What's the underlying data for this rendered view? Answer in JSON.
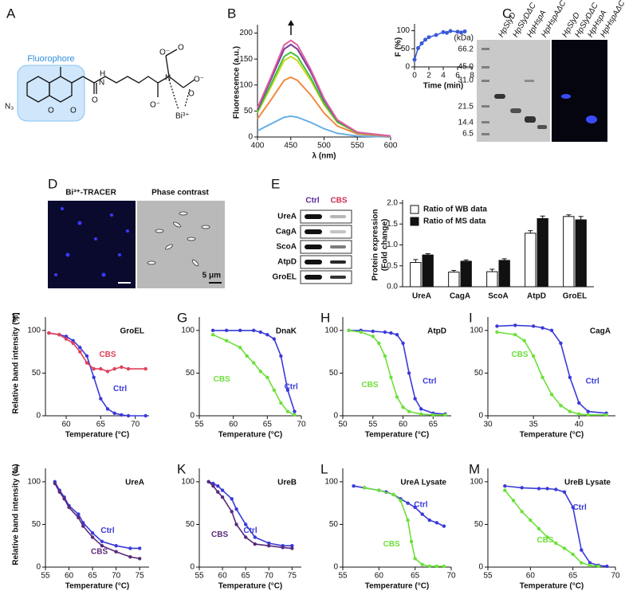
{
  "figure": {
    "A": {
      "letter": "A",
      "fluorophore": "Fluorophore",
      "labels": [
        "N₃",
        "O",
        "O",
        "H",
        "N",
        "O",
        "O⁻",
        "N",
        "O",
        "O⁻",
        "O⁻",
        "O",
        "Bi³⁺"
      ]
    },
    "C": {
      "letter": "C",
      "unit": "(kDa)",
      "markers": [
        "66.2",
        "45.0",
        "31.0",
        "21.5",
        "14.4",
        "6.5"
      ],
      "lanes": [
        "HpSlyD",
        "HpSlyDΔC",
        "HpHspA",
        "HpHspAΔC"
      ]
    },
    "D": {
      "letter": "D",
      "left": "Bi³⁺-TRACER",
      "right": "Phase contrast",
      "scale": "5 μm"
    },
    "E": {
      "letter": "E",
      "columns": [
        "Ctrl",
        "CBS"
      ],
      "rows": [
        "UreA",
        "CagA",
        "ScoA",
        "AtpD",
        "GroEL"
      ]
    }
  },
  "chart_data": [
    {
      "type": "line",
      "panel": "B",
      "xlabel": "λ (nm)",
      "ylabel": "Fluorescence (a.u.)",
      "x": [
        400,
        420,
        440,
        450,
        460,
        480,
        500,
        520,
        550,
        600
      ],
      "xlim": [
        400,
        600
      ],
      "xticks": [
        400,
        450,
        500,
        550,
        600
      ],
      "ylim": [
        0,
        210
      ],
      "yticks": [
        0,
        50,
        100,
        150,
        200
      ],
      "series": [
        {
          "color": "#6ab0e8",
          "values": [
            12,
            25,
            38,
            40,
            38,
            28,
            16,
            7,
            2,
            0
          ]
        },
        {
          "color": "#f08a40",
          "values": [
            35,
            71,
            109,
            115,
            109,
            81,
            46,
            21,
            6,
            1
          ]
        },
        {
          "color": "#c8d820",
          "values": [
            47,
            96,
            147,
            155,
            147,
            109,
            62,
            28,
            8,
            2
          ]
        },
        {
          "color": "#40c040",
          "values": [
            49,
            101,
            155,
            163,
            155,
            114,
            65,
            29,
            8,
            2
          ]
        },
        {
          "color": "#7a3aa0",
          "values": [
            53,
            110,
            169,
            178,
            169,
            125,
            71,
            32,
            9,
            2
          ]
        },
        {
          "color": "#e060a0",
          "values": [
            56,
            115,
            177,
            186,
            177,
            130,
            74,
            33,
            9,
            2
          ]
        }
      ]
    },
    {
      "type": "line",
      "markers": true,
      "xlabel": "Time (min)",
      "ylabel": "F (%)",
      "x": [
        0,
        0.5,
        1,
        1.5,
        2,
        3,
        4,
        4.5,
        5,
        6,
        6.5,
        7
      ],
      "xlim": [
        0,
        8
      ],
      "xticks": [
        0,
        2,
        4,
        6,
        8
      ],
      "ylim": [
        0,
        110
      ],
      "yticks": [
        0,
        50,
        100
      ],
      "series": [
        {
          "color": "#3a5ad8",
          "values": [
            20,
            52,
            65,
            75,
            82,
            88,
            96,
            94,
            99,
            97,
            95,
            98
          ]
        }
      ]
    },
    {
      "type": "bar",
      "ylabel": [
        "Protein expression",
        "(Fold change)"
      ],
      "legend": "upper left",
      "categories": [
        "UreA",
        "CagA",
        "ScoA",
        "AtpD",
        "GroEL"
      ],
      "ylim": [
        0,
        2
      ],
      "yticks": [
        {
          "value": 0,
          "label": "0.0"
        },
        0.5,
        {
          "value": 1,
          "label": "1.0"
        },
        1.5,
        {
          "value": 2,
          "label": "2.0"
        }
      ],
      "series": [
        {
          "name": "Ratio of WB data",
          "color": "#ffffff",
          "values": [
            0.58,
            0.35,
            0.36,
            1.28,
            1.68
          ],
          "errors": [
            0.07,
            0.04,
            0.06,
            0.06,
            0.04
          ]
        },
        {
          "name": "Ratio of MS data",
          "color": "#111111",
          "values": [
            0.76,
            0.61,
            0.63,
            1.63,
            1.6
          ],
          "errors": [
            0.03,
            0.03,
            0.04,
            0.06,
            0.08
          ]
        }
      ]
    },
    {
      "type": "line",
      "markers": true,
      "panel": "F",
      "title": "GroEL",
      "xlabel": "Temperature (°C)",
      "ylabel": "Relative band intensity (%)",
      "xlim": [
        57,
        72
      ],
      "xticks": [
        60,
        65,
        70
      ],
      "ylim": [
        0,
        112
      ],
      "yticks": [
        0,
        50,
        100
      ],
      "series": [
        {
          "name": "Ctrl",
          "color": "#3a3ad8",
          "x": [
            57.5,
            59,
            60,
            61,
            62,
            63,
            64,
            65,
            66,
            67,
            68,
            69,
            71.5
          ],
          "values": [
            97,
            95,
            93,
            88,
            80,
            70,
            45,
            20,
            8,
            3,
            1,
            0,
            0
          ]
        },
        {
          "name": "CBS",
          "color": "#e0405a",
          "x": [
            57.5,
            59,
            60,
            61,
            62,
            63,
            64,
            65,
            66,
            67,
            68,
            69,
            71.5
          ],
          "values": [
            97,
            95,
            90,
            85,
            75,
            62,
            55,
            55,
            52,
            55,
            57,
            55,
            55
          ]
        }
      ]
    },
    {
      "type": "line",
      "markers": true,
      "panel": "G",
      "title": "DnaK",
      "xlabel": "Temperature (°C)",
      "xlim": [
        55,
        70
      ],
      "xticks": [
        55,
        60,
        65,
        70
      ],
      "ylim": [
        0,
        112
      ],
      "yticks": [
        0,
        50,
        100
      ],
      "series": [
        {
          "name": "Ctrl",
          "color": "#3a3ad8",
          "x": [
            57,
            59,
            61,
            63,
            64,
            65,
            66,
            67,
            68,
            69
          ],
          "values": [
            100,
            100,
            100,
            100,
            98,
            95,
            90,
            70,
            30,
            5
          ]
        },
        {
          "name": "CBS",
          "color": "#6ce03a",
          "x": [
            57,
            59,
            61,
            62,
            63,
            64,
            65,
            66,
            67,
            68,
            69
          ],
          "values": [
            95,
            88,
            80,
            70,
            62,
            52,
            45,
            30,
            15,
            5,
            1
          ]
        }
      ]
    },
    {
      "type": "line",
      "markers": true,
      "panel": "H",
      "title": "AtpD",
      "xlabel": "Temperature (°C)",
      "xlim": [
        50,
        68
      ],
      "xticks": [
        50,
        55,
        60,
        65
      ],
      "ylim": [
        0,
        112
      ],
      "yticks": [
        0,
        50,
        100
      ],
      "series": [
        {
          "name": "Ctrl",
          "color": "#3a3ad8",
          "x": [
            51,
            53,
            55,
            57,
            58,
            59,
            60,
            61,
            62,
            63,
            65,
            67
          ],
          "values": [
            100,
            100,
            99,
            98,
            97,
            95,
            85,
            50,
            20,
            8,
            3,
            2
          ]
        },
        {
          "name": "CBS",
          "color": "#6ce03a",
          "x": [
            51,
            53,
            55,
            56,
            57,
            58,
            59,
            60,
            61,
            63,
            65,
            67
          ],
          "values": [
            100,
            98,
            93,
            85,
            70,
            45,
            22,
            10,
            5,
            2,
            1,
            1
          ]
        }
      ]
    },
    {
      "type": "line",
      "markers": true,
      "panel": "I",
      "title": "CagA",
      "xlabel": "Temperature (°C)",
      "xlim": [
        30,
        44
      ],
      "xticks": [
        30,
        35,
        40
      ],
      "ylim": [
        0,
        112
      ],
      "yticks": [
        0,
        50,
        100
      ],
      "series": [
        {
          "name": "Ctrl",
          "color": "#3a3ad8",
          "x": [
            31,
            33,
            35,
            36,
            37,
            38,
            39,
            40,
            41,
            43
          ],
          "values": [
            105,
            106,
            105,
            103,
            100,
            85,
            45,
            15,
            5,
            3
          ]
        },
        {
          "name": "CBS",
          "color": "#6ce03a",
          "x": [
            31,
            33,
            34,
            35,
            36,
            37,
            38,
            39,
            40,
            41,
            43
          ],
          "values": [
            98,
            95,
            88,
            70,
            45,
            25,
            12,
            5,
            2,
            1,
            1
          ]
        }
      ]
    },
    {
      "type": "line",
      "markers": true,
      "panel": "J",
      "title": "UreA",
      "xlabel": "Temperature (°C)",
      "ylabel": "Relative band intensity (%)",
      "xlim": [
        55,
        77
      ],
      "xticks": [
        55,
        60,
        65,
        70,
        75
      ],
      "ylim": [
        0,
        112
      ],
      "yticks": [
        0,
        50,
        100
      ],
      "series": [
        {
          "name": "Ctrl",
          "color": "#3a3ad8",
          "x": [
            57,
            58,
            59,
            60,
            62,
            63,
            65,
            67,
            70,
            73,
            75
          ],
          "values": [
            100,
            90,
            82,
            72,
            62,
            52,
            40,
            30,
            25,
            22,
            22
          ]
        },
        {
          "name": "CBS",
          "color": "#5a2a7a",
          "x": [
            57,
            58,
            59,
            60,
            62,
            63,
            65,
            67,
            70,
            73,
            75
          ],
          "values": [
            98,
            88,
            80,
            70,
            58,
            48,
            35,
            25,
            18,
            12,
            10
          ]
        }
      ]
    },
    {
      "type": "line",
      "markers": true,
      "panel": "K",
      "title": "UreB",
      "xlabel": "Temperature (°C)",
      "xlim": [
        55,
        77
      ],
      "xticks": [
        55,
        60,
        65,
        70,
        75
      ],
      "ylim": [
        0,
        112
      ],
      "yticks": [
        0,
        50,
        100
      ],
      "series": [
        {
          "name": "Ctrl",
          "color": "#3a3ad8",
          "x": [
            57,
            58,
            59,
            60,
            62,
            63,
            65,
            67,
            70,
            73,
            75
          ],
          "values": [
            100,
            98,
            95,
            90,
            80,
            68,
            50,
            35,
            28,
            25,
            25
          ]
        },
        {
          "name": "CBS",
          "color": "#5a2a7a",
          "x": [
            57,
            58,
            59,
            60,
            62,
            63,
            65,
            67,
            70,
            73,
            75
          ],
          "values": [
            100,
            95,
            88,
            82,
            65,
            50,
            35,
            27,
            25,
            23,
            22
          ]
        }
      ]
    },
    {
      "type": "line",
      "markers": true,
      "panel": "L",
      "title": "UreA Lysate",
      "xlabel": "Temperature (°C)",
      "xlim": [
        55,
        70
      ],
      "xticks": [
        55,
        60,
        65,
        70
      ],
      "ylim": [
        0,
        112
      ],
      "yticks": [
        0,
        50,
        100
      ],
      "series": [
        {
          "name": "Ctrl",
          "color": "#3a3ad8",
          "x": [
            56.5,
            58,
            60,
            61,
            62,
            63,
            64,
            65,
            66,
            67,
            68,
            69
          ],
          "values": [
            95,
            93,
            90,
            88,
            85,
            80,
            75,
            70,
            62,
            55,
            52,
            48
          ]
        },
        {
          "name": "CBS",
          "color": "#6ce03a",
          "x": [
            58,
            60,
            62,
            63,
            64,
            64.5,
            65,
            66,
            67,
            68,
            69
          ],
          "values": [
            93,
            90,
            85,
            78,
            55,
            30,
            10,
            3,
            1,
            1,
            1
          ]
        }
      ]
    },
    {
      "type": "line",
      "markers": true,
      "panel": "M",
      "title": "UreB Lysate",
      "xlabel": "Temperature (°C)",
      "xlim": [
        55,
        70
      ],
      "xticks": [
        55,
        60,
        65,
        70
      ],
      "ylim": [
        0,
        112
      ],
      "yticks": [
        0,
        50,
        100
      ],
      "series": [
        {
          "name": "Ctrl",
          "color": "#3a3ad8",
          "x": [
            57,
            59,
            61,
            62,
            63,
            64,
            65,
            66,
            67,
            68,
            69
          ],
          "values": [
            95,
            93,
            92,
            92,
            91,
            88,
            70,
            20,
            5,
            2,
            1
          ]
        },
        {
          "name": "CBS",
          "color": "#6ce03a",
          "x": [
            57,
            58,
            59,
            60,
            61,
            62,
            63,
            64,
            65,
            66,
            67,
            68
          ],
          "values": [
            90,
            78,
            65,
            55,
            45,
            35,
            28,
            22,
            15,
            5,
            2,
            1
          ]
        }
      ]
    }
  ]
}
